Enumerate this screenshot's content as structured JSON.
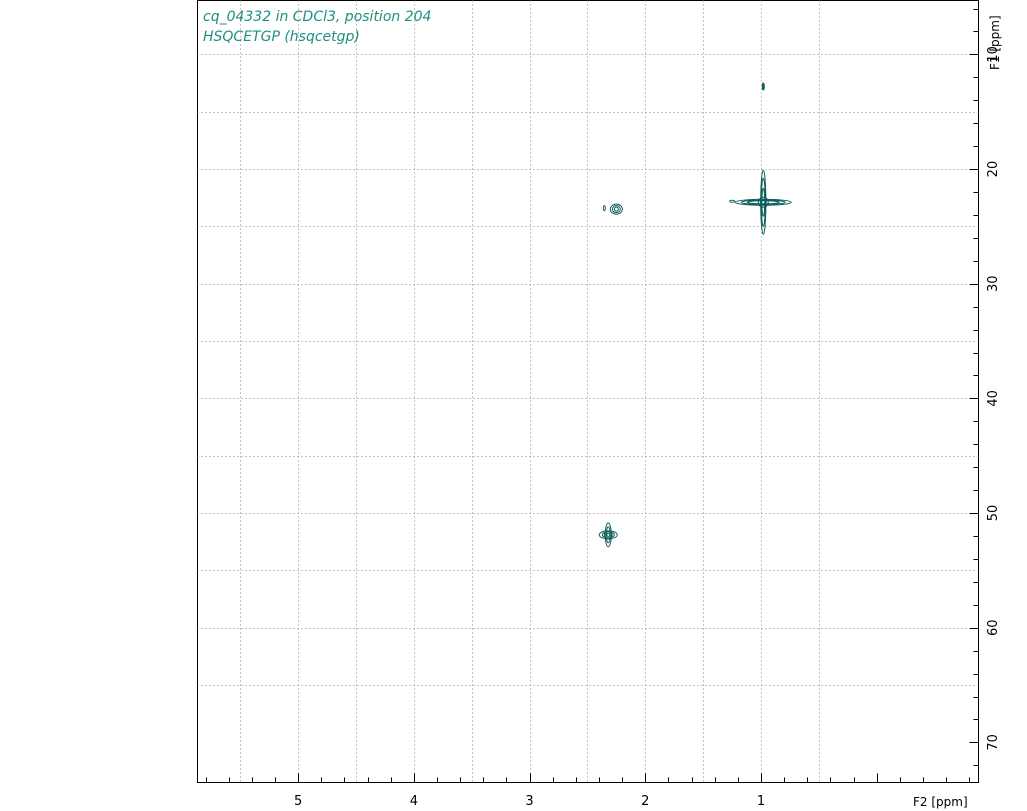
{
  "chart_data": {
    "type": "heatmap",
    "title_lines": [
      "cq_04332 in CDCl3, position 204",
      "HSQCETGP (hsqcetgp)"
    ],
    "xlabel": "F2 [ppm]",
    "ylabel": "F1 [ppm]",
    "x_reversed": true,
    "y_reversed": true,
    "xlim": [
      5.87,
      -0.88
    ],
    "ylim": [
      5.3,
      73.5
    ],
    "x_ticks": [
      5,
      4,
      3,
      2,
      1
    ],
    "x_tick_labels": [
      "5",
      "4",
      "3",
      "2",
      "1"
    ],
    "x_minor_step": 0.2,
    "y_ticks": [
      10,
      20,
      30,
      40,
      50,
      60,
      70
    ],
    "y_tick_labels": [
      "10",
      "20",
      "30",
      "40",
      "50",
      "60",
      "70"
    ],
    "y_minor_step": 2,
    "x_grid": [
      5.5,
      5.0,
      4.5,
      4.0,
      3.5,
      3.0,
      2.5,
      2.0,
      1.5,
      1.0,
      0.5
    ],
    "y_grid": [
      10,
      15,
      20,
      25,
      30,
      35,
      40,
      45,
      50,
      55,
      60,
      65
    ],
    "grid": true,
    "contour_color": "#0f5f5f",
    "peaks": [
      {
        "x": 0.98,
        "y": 12.8,
        "intensity": "weak"
      },
      {
        "x": 0.98,
        "y": 22.9,
        "intensity": "strong"
      },
      {
        "x": 2.25,
        "y": 23.5,
        "intensity": "medium"
      },
      {
        "x": 2.32,
        "y": 51.9,
        "intensity": "medium"
      }
    ]
  }
}
